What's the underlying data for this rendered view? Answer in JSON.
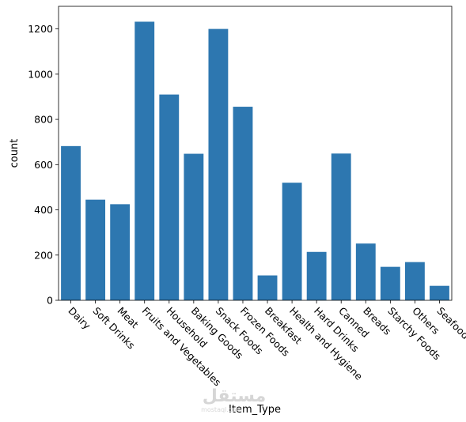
{
  "chart_data": {
    "type": "bar",
    "xlabel": "Item_Type",
    "ylabel": "count",
    "ylim": [
      0,
      1300
    ],
    "yticks": [
      0,
      200,
      400,
      600,
      800,
      1000,
      1200
    ],
    "bar_color": "#2d77b0",
    "categories": [
      "Dairy",
      "Soft Drinks",
      "Meat",
      "Fruits and Vegetables",
      "Household",
      "Baking Goods",
      "Snack Foods",
      "Frozen Foods",
      "Breakfast",
      "Health and Hygiene",
      "Hard Drinks",
      "Canned",
      "Breads",
      "Starchy Foods",
      "Others",
      "Seafood"
    ],
    "values": [
      682,
      445,
      425,
      1232,
      910,
      648,
      1200,
      856,
      110,
      520,
      214,
      649,
      251,
      148,
      169,
      64
    ],
    "x_tick_rotation": -45,
    "grid": false
  },
  "watermark": {
    "text": "مستقل",
    "subtext": "mostaql.com"
  }
}
